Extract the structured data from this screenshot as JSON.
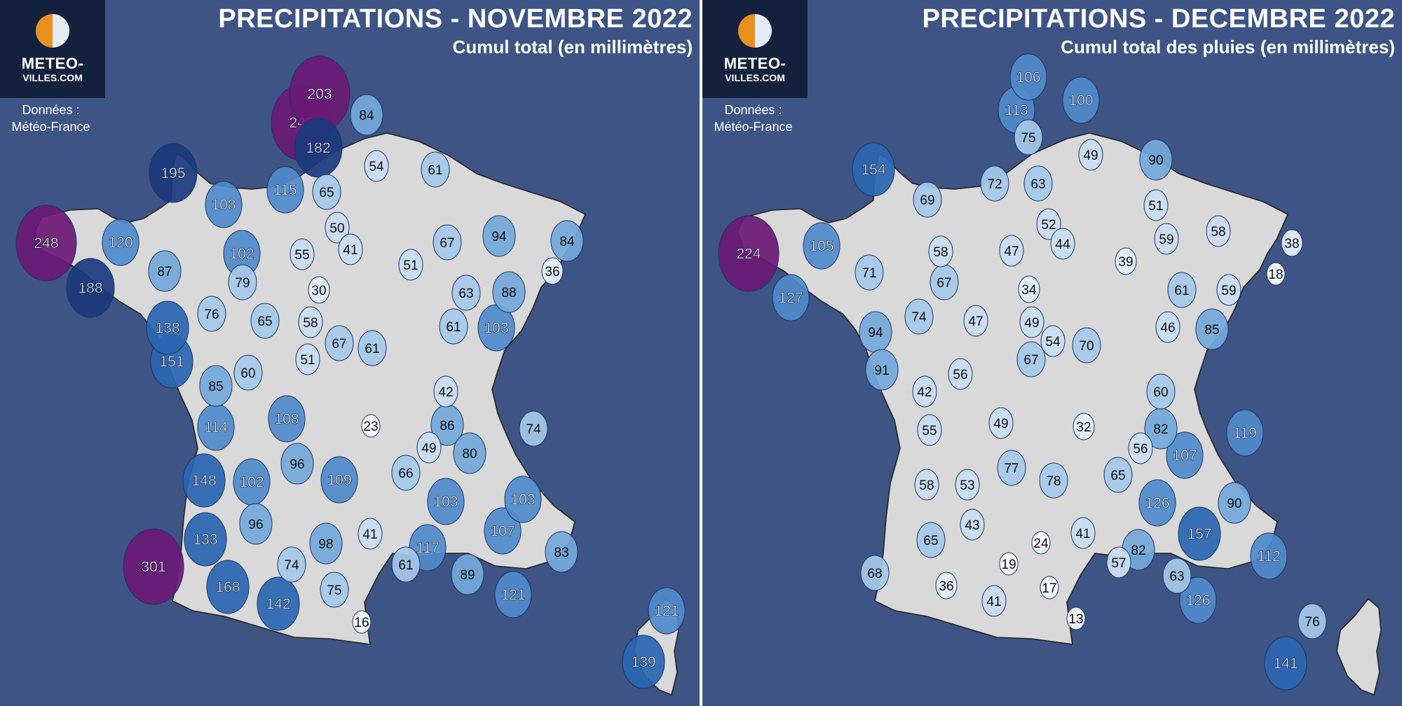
{
  "maps": [
    {
      "title": "PRECIPITATIONS - NOVEMBRE 2022",
      "subtitle": "Cumul total (en millimètres)",
      "logo": {
        "line1": "METEO-",
        "line2": "VILLES.COM",
        "colors": {
          "sun": "#e8901c",
          "moon": "#e4ebf5",
          "background": "#13213d"
        }
      },
      "source": {
        "line1": "Données :",
        "line2": "Météo-France"
      },
      "unit": "mm",
      "stations": [
        203,
        243,
        182,
        84,
        54,
        61,
        195,
        115,
        65,
        108,
        248,
        120,
        102,
        50,
        41,
        55,
        67,
        94,
        84,
        87,
        79,
        51,
        188,
        36,
        30,
        63,
        88,
        76,
        65,
        58,
        138,
        67,
        61,
        61,
        103,
        151,
        60,
        51,
        85,
        42,
        108,
        23,
        114,
        86,
        74,
        49,
        80,
        148,
        96,
        102,
        109,
        66,
        103,
        103,
        96,
        107,
        41,
        133,
        98,
        301,
        117,
        74,
        61,
        83,
        168,
        89,
        142,
        75,
        121,
        16,
        121,
        139
      ]
    },
    {
      "title": "PRECIPITATIONS - DECEMBRE 2022",
      "subtitle": "Cumul total des pluies (en millimètres)",
      "logo": {
        "line1": "METEO-",
        "line2": "VILLES.COM",
        "colors": {
          "sun": "#e8901c",
          "moon": "#e4ebf5",
          "background": "#13213d"
        }
      },
      "source": {
        "line1": "Données :",
        "line2": "Météo-France"
      },
      "unit": "mm",
      "stations": [
        106,
        113,
        100,
        75,
        49,
        90,
        154,
        72,
        63,
        69,
        52,
        44,
        51,
        59,
        58,
        224,
        105,
        58,
        47,
        38,
        71,
        39,
        18,
        67,
        34,
        61,
        59,
        127,
        74,
        47,
        49,
        46,
        85,
        54,
        70,
        94,
        91,
        42,
        67,
        56,
        60,
        82,
        49,
        32,
        119,
        55,
        56,
        107,
        77,
        58,
        53,
        78,
        65,
        126,
        90,
        43,
        41,
        24,
        65,
        157,
        82,
        112,
        19,
        68,
        57,
        63,
        17,
        36,
        41,
        126,
        13,
        76,
        141
      ],
      "palette": {
        "very_low": "#e9eff8",
        "low": "#c7dbef",
        "mid": "#92bde1",
        "high": "#5a96cf",
        "very_high": "#2a66b1",
        "extreme": "#1a3f86",
        "record": "#6a1a75"
      }
    }
  ]
}
